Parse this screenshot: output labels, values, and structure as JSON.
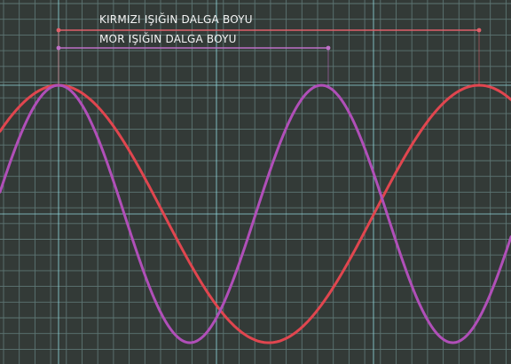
{
  "labels": {
    "red_wavelength": "KIRMIZI IŞIĞIN DALGA BOYU",
    "violet_wavelength": "MOR IŞIĞIN DALGA BOYU"
  },
  "colors": {
    "background": "#333a37",
    "grid_fine": "#5d7573",
    "grid_major": "#8fd6dc",
    "red_wave": "#e0464f",
    "violet_wave": "#b04fb8",
    "red_bracket": "#e0606a",
    "violet_bracket": "#c070c8"
  },
  "waves": {
    "red": {
      "wavelength_ratio": 1.0
    },
    "violet": {
      "wavelength_ratio": 0.625
    }
  }
}
